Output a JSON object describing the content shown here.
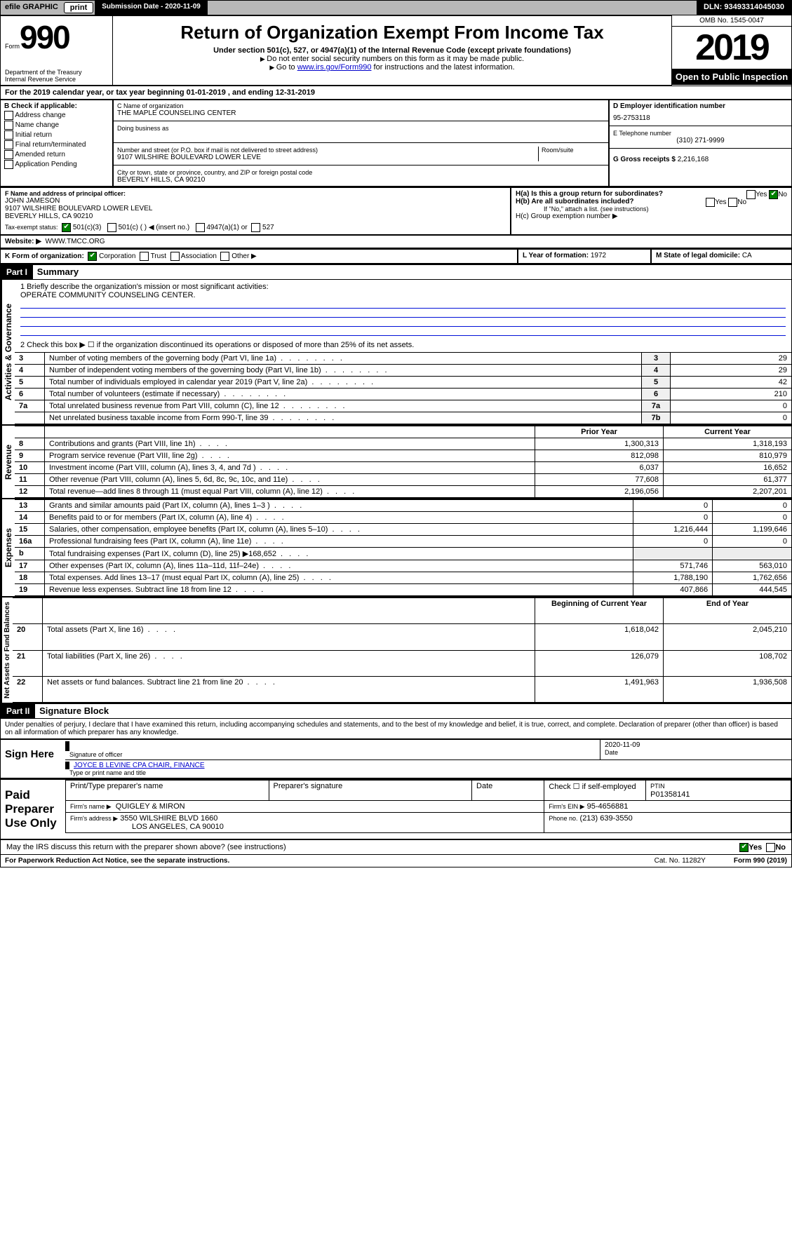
{
  "topbar": {
    "efile_label": "efile GRAPHIC",
    "print_btn": "print",
    "submission_label": "Submission Date - 2020-11-09",
    "dln": "DLN: 93493314045030"
  },
  "header": {
    "form_word": "Form",
    "form_number": "990",
    "dept": "Department of the Treasury\nInternal Revenue Service",
    "title": "Return of Organization Exempt From Income Tax",
    "subtitle": "Under section 501(c), 527, or 4947(a)(1) of the Internal Revenue Code (except private foundations)",
    "note1": "Do not enter social security numbers on this form as it may be made public.",
    "note2_pre": "Go to ",
    "note2_link": "www.irs.gov/Form990",
    "note2_post": " for instructions and the latest information.",
    "omb": "OMB No. 1545-0047",
    "year": "2019",
    "inspect": "Open to Public Inspection"
  },
  "period": {
    "line": "For the 2019 calendar year, or tax year beginning 01-01-2019    , and ending 12-31-2019"
  },
  "blockB": {
    "heading": "B Check if applicable:",
    "opts": [
      "Address change",
      "Name change",
      "Initial return",
      "Final return/terminated",
      "Amended return",
      "Application Pending"
    ]
  },
  "blockC": {
    "name_lbl": "C Name of organization",
    "name": "THE MAPLE COUNSELING CENTER",
    "dba_lbl": "Doing business as",
    "addr_lbl": "Number and street (or P.O. box if mail is not delivered to street address)",
    "room_lbl": "Room/suite",
    "addr": "9107 WILSHIRE BOULEVARD LOWER LEVE",
    "city_lbl": "City or town, state or province, country, and ZIP or foreign postal code",
    "city": "BEVERLY HILLS, CA  90210"
  },
  "blockD": {
    "lbl": "D Employer identification number",
    "val": "95-2753118"
  },
  "blockE": {
    "lbl": "E Telephone number",
    "val": "(310) 271-9999"
  },
  "blockG": {
    "lbl": "G Gross receipts $",
    "val": "2,216,168"
  },
  "blockF": {
    "lbl": "F  Name and address of principal officer:",
    "name": "JOHN JAMESON",
    "addr": "9107 WILSHIRE BOULEVARD LOWER LEVEL\nBEVERLY HILLS, CA  90210"
  },
  "blockH": {
    "a": "H(a)  Is this a group return for subordinates?",
    "b": "H(b)  Are all subordinates included?",
    "note": "If \"No,\" attach a list. (see instructions)",
    "c": "H(c)  Group exemption number ▶",
    "yes": "Yes",
    "no": "No"
  },
  "taxstatus": {
    "lbl": "Tax-exempt status:",
    "o1": "501(c)(3)",
    "o2": "501(c) (  ) ◀ (insert no.)",
    "o3": "4947(a)(1) or",
    "o4": "527"
  },
  "blockJ": {
    "lbl": "Website: ▶",
    "val": "WWW.TMCC.ORG"
  },
  "blockK": {
    "lbl": "K Form of organization:",
    "opts": [
      "Corporation",
      "Trust",
      "Association",
      "Other ▶"
    ]
  },
  "blockL": {
    "lbl": "L Year of formation:",
    "val": "1972"
  },
  "blockM": {
    "lbl": "M State of legal domicile:",
    "val": "CA"
  },
  "part1": {
    "bar": "Part I",
    "title": "Summary"
  },
  "p1": {
    "q1_lbl": "1   Briefly describe the organization's mission or most significant activities:",
    "q1_val": "OPERATE COMMUNITY COUNSELING CENTER.",
    "q2": "2    Check this box ▶ ☐  if the organization discontinued its operations or disposed of more than 25% of its net assets.",
    "vlab_ag": "Activities & Governance",
    "vlab_rev": "Revenue",
    "vlab_exp": "Expenses",
    "vlab_na": "Net Assets or Fund Balances",
    "prior": "Prior Year",
    "current": "Current Year",
    "begin": "Beginning of Current Year",
    "end": "End of Year",
    "rows_single": [
      {
        "n": "3",
        "t": "Number of voting members of the governing body (Part VI, line 1a)",
        "box": "3",
        "v": "29"
      },
      {
        "n": "4",
        "t": "Number of independent voting members of the governing body (Part VI, line 1b)",
        "box": "4",
        "v": "29"
      },
      {
        "n": "5",
        "t": "Total number of individuals employed in calendar year 2019 (Part V, line 2a)",
        "box": "5",
        "v": "42"
      },
      {
        "n": "6",
        "t": "Total number of volunteers (estimate if necessary)",
        "box": "6",
        "v": "210"
      },
      {
        "n": "7a",
        "t": "Total unrelated business revenue from Part VIII, column (C), line 12",
        "box": "7a",
        "v": "0"
      },
      {
        "n": "",
        "t": "Net unrelated business taxable income from Form 990-T, line 39",
        "box": "7b",
        "v": "0"
      }
    ],
    "rows_rev": [
      {
        "n": "8",
        "t": "Contributions and grants (Part VIII, line 1h)",
        "p": "1,300,313",
        "c": "1,318,193"
      },
      {
        "n": "9",
        "t": "Program service revenue (Part VIII, line 2g)",
        "p": "812,098",
        "c": "810,979"
      },
      {
        "n": "10",
        "t": "Investment income (Part VIII, column (A), lines 3, 4, and 7d )",
        "p": "6,037",
        "c": "16,652"
      },
      {
        "n": "11",
        "t": "Other revenue (Part VIII, column (A), lines 5, 6d, 8c, 9c, 10c, and 11e)",
        "p": "77,608",
        "c": "61,377"
      },
      {
        "n": "12",
        "t": "Total revenue—add lines 8 through 11 (must equal Part VIII, column (A), line 12)",
        "p": "2,196,056",
        "c": "2,207,201"
      }
    ],
    "rows_exp": [
      {
        "n": "13",
        "t": "Grants and similar amounts paid (Part IX, column (A), lines 1–3 )",
        "p": "0",
        "c": "0"
      },
      {
        "n": "14",
        "t": "Benefits paid to or for members (Part IX, column (A), line 4)",
        "p": "0",
        "c": "0"
      },
      {
        "n": "15",
        "t": "Salaries, other compensation, employee benefits (Part IX, column (A), lines 5–10)",
        "p": "1,216,444",
        "c": "1,199,646"
      },
      {
        "n": "16a",
        "t": "Professional fundraising fees (Part IX, column (A), line 11e)",
        "p": "0",
        "c": "0"
      },
      {
        "n": "b",
        "t": "Total fundraising expenses (Part IX, column (D), line 25) ▶168,652",
        "p": "",
        "c": "",
        "shade": true
      },
      {
        "n": "17",
        "t": "Other expenses (Part IX, column (A), lines 11a–11d, 11f–24e)",
        "p": "571,746",
        "c": "563,010"
      },
      {
        "n": "18",
        "t": "Total expenses. Add lines 13–17 (must equal Part IX, column (A), line 25)",
        "p": "1,788,190",
        "c": "1,762,656"
      },
      {
        "n": "19",
        "t": "Revenue less expenses. Subtract line 18 from line 12",
        "p": "407,866",
        "c": "444,545"
      }
    ],
    "rows_na": [
      {
        "n": "20",
        "t": "Total assets (Part X, line 16)",
        "p": "1,618,042",
        "c": "2,045,210"
      },
      {
        "n": "21",
        "t": "Total liabilities (Part X, line 26)",
        "p": "126,079",
        "c": "108,702"
      },
      {
        "n": "22",
        "t": "Net assets or fund balances. Subtract line 21 from line 20",
        "p": "1,491,963",
        "c": "1,936,508"
      }
    ]
  },
  "part2": {
    "bar": "Part II",
    "title": "Signature Block",
    "decl": "Under penalties of perjury, I declare that I have examined this return, including accompanying schedules and statements, and to the best of my knowledge and belief, it is true, correct, and complete. Declaration of preparer (other than officer) is based on all information of which preparer has any knowledge."
  },
  "sign": {
    "here": "Sign Here",
    "sig_lbl": "Signature of officer",
    "date_lbl": "Date",
    "date": "2020-11-09",
    "name": "JOYCE B LEVINE CPA  CHAIR, FINANCE",
    "name_lbl": "Type or print name and title"
  },
  "paid": {
    "here": "Paid Preparer Use Only",
    "col1": "Print/Type preparer's name",
    "col2": "Preparer's signature",
    "col3": "Date",
    "check_lbl": "Check ☐ if self-employed",
    "ptin_lbl": "PTIN",
    "ptin": "P01358141",
    "firm_name_lbl": "Firm's name   ▶",
    "firm_name": "QUIGLEY & MIRON",
    "firm_ein_lbl": "Firm's EIN ▶",
    "firm_ein": "95-4656881",
    "firm_addr_lbl": "Firm's address ▶",
    "firm_addr": "3550 WILSHIRE BLVD 1660",
    "firm_city": "LOS ANGELES, CA  90010",
    "phone_lbl": "Phone no.",
    "phone": "(213) 639-3550"
  },
  "discuss": {
    "q": "May the IRS discuss this return with the preparer shown above? (see instructions)",
    "yes": "Yes",
    "no": "No"
  },
  "foot": {
    "l": "For Paperwork Reduction Act Notice, see the separate instructions.",
    "m": "Cat. No. 11282Y",
    "r": "Form 990 (2019)"
  }
}
